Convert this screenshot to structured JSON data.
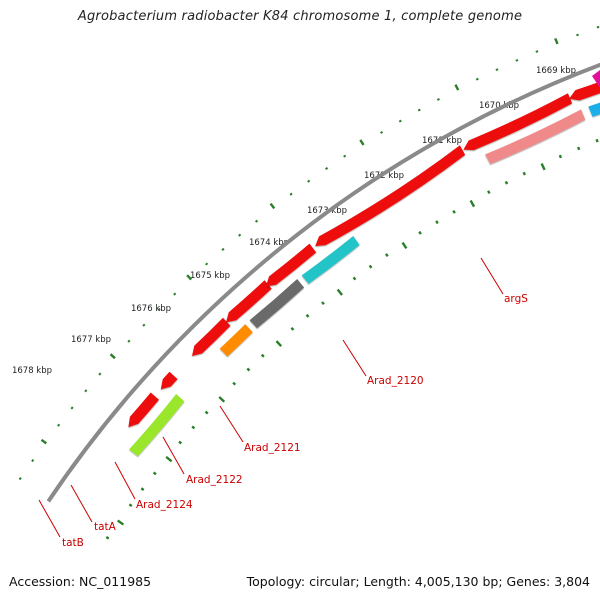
{
  "title": "Agrobacterium radiobacter K84 chromosome 1, complete genome",
  "footer": {
    "accession": "Accession: NC_011985",
    "topology": "Topology: circular; Length: 4,005,130 bp; Genes: 3,804"
  },
  "scale_labels": [
    "1669 kbp",
    "1670 kbp",
    "1671 kbp",
    "1672 kbp",
    "1673 kbp",
    "1674 kbp",
    "1675 kbp",
    "1676 kbp",
    "1677 kbp",
    "1678 kbp"
  ],
  "gene_labels": [
    "argS",
    "Arad_2120",
    "Arad_2121",
    "Arad_2122",
    "Arad_2124",
    "tatA",
    "tatB"
  ],
  "colors": {
    "backbone": "#8a8a8a",
    "cds": "#ee1111",
    "argS": "#f08a8a",
    "Arad_2121": "#22c4c8",
    "Arad_2122": "#6b6b6b",
    "Arad_2124": "#ff8c00",
    "tatB": "#99e62b",
    "blue": "#1aaee8",
    "magenta": "#e0109a",
    "ticks": "#2a7f2a",
    "label": "#cc0000"
  }
}
